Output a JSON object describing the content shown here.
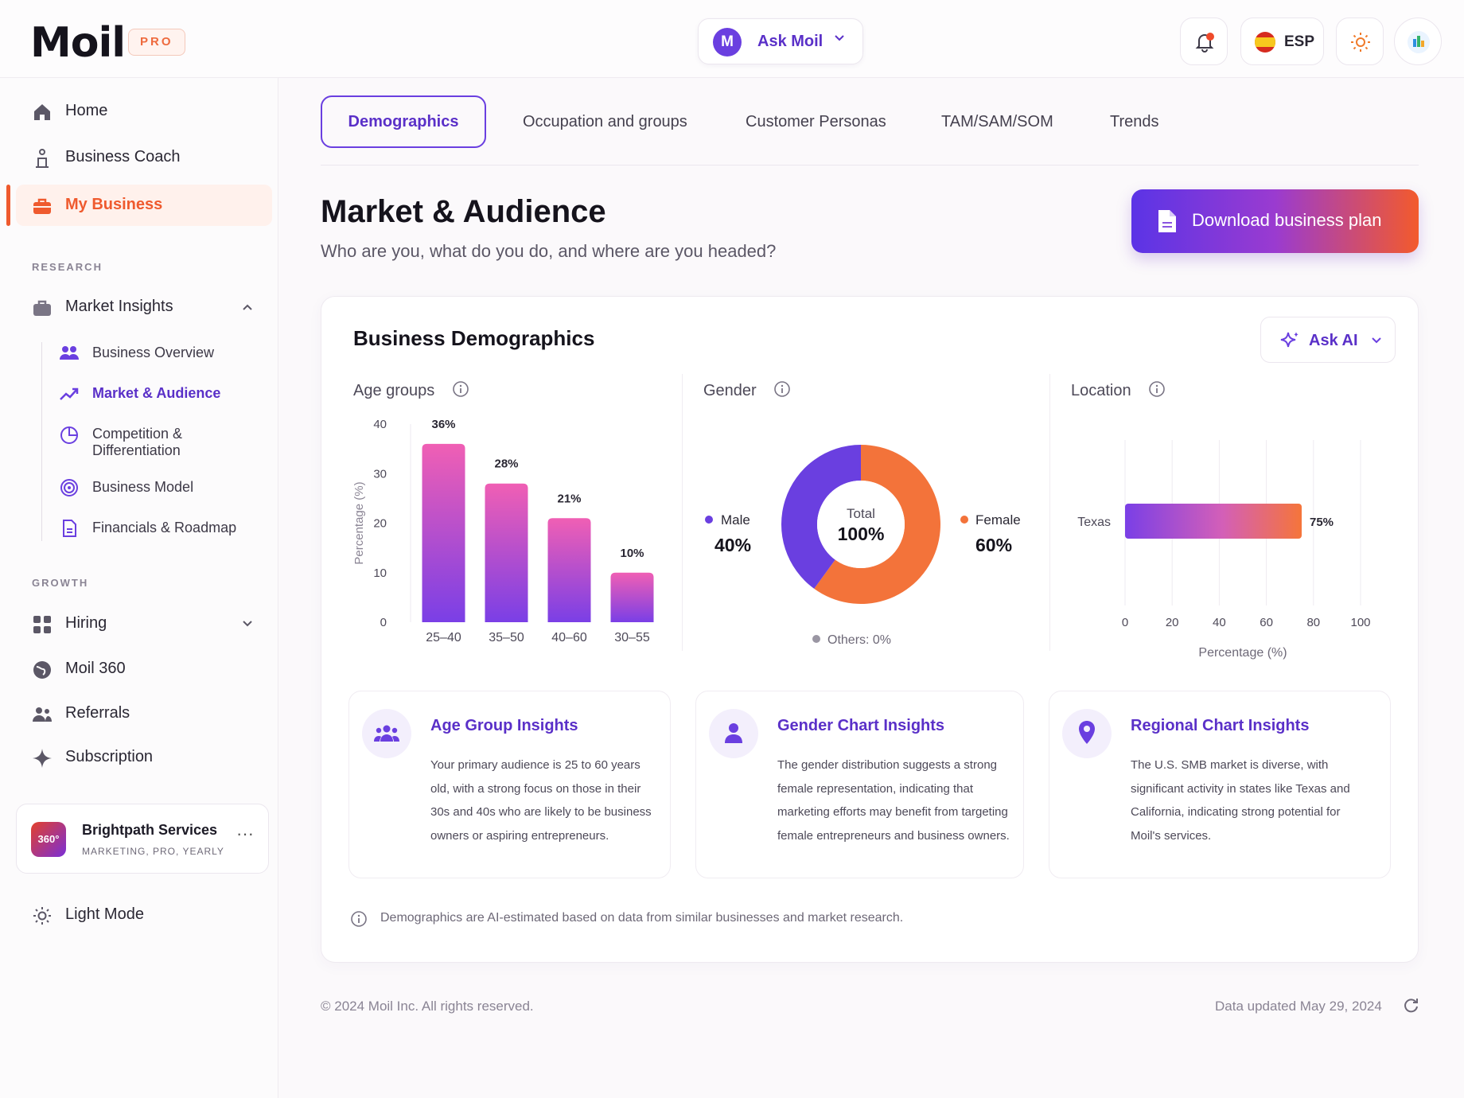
{
  "app": {
    "logo": "Moil",
    "plan_badge": "PRO"
  },
  "topbar": {
    "ask_avatar": "M",
    "ask_label": "Ask Moil",
    "language": "ESP",
    "icons": [
      "bell-icon",
      "spain-flag-icon",
      "sun-icon",
      "profile-icon"
    ]
  },
  "sidebar": {
    "main": [
      {
        "label": "Home",
        "icon": "home-icon"
      },
      {
        "label": "Business Coach",
        "icon": "coach-icon"
      },
      {
        "label": "My Business",
        "icon": "briefcase-icon",
        "active": true
      }
    ],
    "research_heading": "RESEARCH",
    "market_insights": "Market Insights",
    "research_items": [
      {
        "label": "Business Overview",
        "icon": "users-icon"
      },
      {
        "label": "Market & Audience",
        "icon": "trend-icon",
        "active": true
      },
      {
        "label": "Competition &",
        "label2": "Differentiation",
        "icon": "pie-icon"
      },
      {
        "label": "Business Model",
        "icon": "target-icon"
      },
      {
        "label": "Financials & Roadmap",
        "icon": "document-icon"
      }
    ],
    "growth_heading": "GROWTH",
    "growth_items": [
      {
        "label": "Hiring",
        "icon": "grid-icon"
      },
      {
        "label": "Moil 360",
        "icon": "globe-icon"
      },
      {
        "label": "Referrals",
        "icon": "referrals-icon"
      },
      {
        "label": "Subscription",
        "icon": "sparkle-icon"
      }
    ],
    "business": {
      "avatar": "360°",
      "name": "Brightpath Services",
      "meta": "MARKETING, PRO, YEARLY",
      "more": "···"
    },
    "light_mode": "Light Mode"
  },
  "tabs": [
    "Demographics",
    "Occupation and groups",
    "Customer Personas",
    "TAM/SAM/SOM",
    "Trends"
  ],
  "header": {
    "title": "Market & Audience",
    "subtitle": "Who are you, what do you do, and where are you headed?",
    "download": "Download business plan"
  },
  "panel": {
    "title": "Business Demographics",
    "ask_ai": "Ask AI",
    "age_title": "Age groups",
    "gender_title": "Gender",
    "location_title": "Location",
    "note": "Demographics are AI-estimated based on data from similar businesses and market research."
  },
  "chart_data": [
    {
      "type": "bar",
      "title": "Age groups",
      "categories": [
        "25–40",
        "35–50",
        "40–60",
        "30–55"
      ],
      "values": [
        36,
        28,
        21,
        10
      ],
      "data_labels": [
        "36%",
        "28%",
        "21%",
        "10%"
      ],
      "ylabel": "Percentage (%)",
      "ylim": [
        0,
        40
      ],
      "yticks": [
        "0",
        "10",
        "20",
        "30",
        "40"
      ]
    },
    {
      "type": "pie",
      "title": "Gender",
      "slices": [
        {
          "name": "Male",
          "value": 40,
          "label": "40%",
          "color": "#6a3fe0"
        },
        {
          "name": "Female",
          "value": 60,
          "label": "60%",
          "color": "#f3733a"
        }
      ],
      "center_label": "Total",
      "center_value": "100%",
      "others": "Others: 0%"
    },
    {
      "type": "bar",
      "orientation": "horizontal",
      "title": "Location",
      "categories": [
        "Texas"
      ],
      "values": [
        75
      ],
      "data_labels": [
        "75%"
      ],
      "xlabel": "Percentage (%)",
      "xlim": [
        0,
        100
      ],
      "xticks": [
        "0",
        "20",
        "40",
        "60",
        "80",
        "100"
      ]
    }
  ],
  "insights": [
    {
      "title": "Age Group Insights",
      "icon": "group-icon",
      "lines": [
        "Your primary audience is 25 to 60 years",
        "old, with a strong focus on those in their",
        "30s and 40s who are likely to be business",
        "owners or aspiring entrepreneurs."
      ]
    },
    {
      "title": "Gender Chart Insights",
      "icon": "person-icon",
      "lines": [
        "The gender distribution suggests a strong",
        "female representation, indicating that",
        "marketing efforts may benefit from targeting",
        "female entrepreneurs and business owners."
      ]
    },
    {
      "title": "Regional Chart Insights",
      "icon": "location-pin-icon",
      "lines": [
        "The U.S. SMB market is diverse, with",
        "significant activity in states like Texas and",
        "California, indicating strong potential for",
        "Moil's services."
      ]
    }
  ],
  "footer": {
    "copyright": "© 2024 Moil Inc. All rights reserved.",
    "updated": "Data updated May 29, 2024"
  },
  "colors": {
    "accent": "#6a3fe0",
    "orange": "#ef5a2e"
  }
}
